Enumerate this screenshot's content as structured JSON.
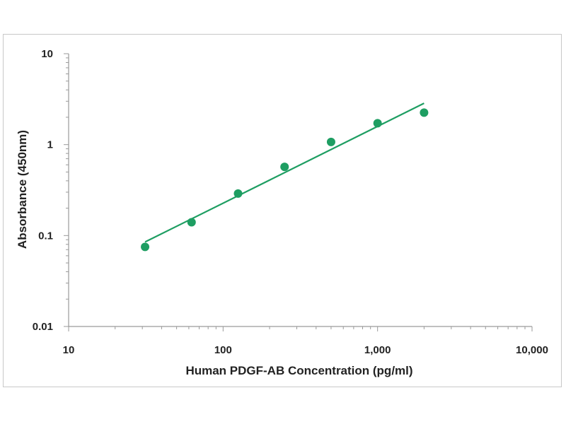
{
  "chart_data": {
    "type": "scatter",
    "title": "",
    "xlabel": "Human PDGF-AB Concentration (pg/ml)",
    "ylabel": "Absorbance (450nm)",
    "x_scale": "log",
    "y_scale": "log",
    "xlim": [
      10,
      10000
    ],
    "ylim": [
      0.01,
      10
    ],
    "x_ticks": [
      10,
      100,
      1000,
      10000
    ],
    "x_tick_labels": [
      "10",
      "100",
      "1,000",
      "10,000"
    ],
    "y_ticks": [
      0.01,
      0.1,
      1,
      10
    ],
    "y_tick_labels": [
      "0.01",
      "0.1",
      "1",
      "10"
    ],
    "grid": false,
    "legend": "none",
    "series": [
      {
        "x": [
          31.25,
          62.5,
          125,
          250,
          500,
          1000,
          2000
        ],
        "y": [
          0.075,
          0.14,
          0.29,
          0.57,
          1.07,
          1.72,
          2.25
        ],
        "color": "#1e9e62",
        "marker": "circle"
      }
    ],
    "fit_line": {
      "x": [
        31.25,
        2000
      ],
      "y": [
        0.085,
        2.85
      ],
      "color": "#1e9e62"
    }
  }
}
